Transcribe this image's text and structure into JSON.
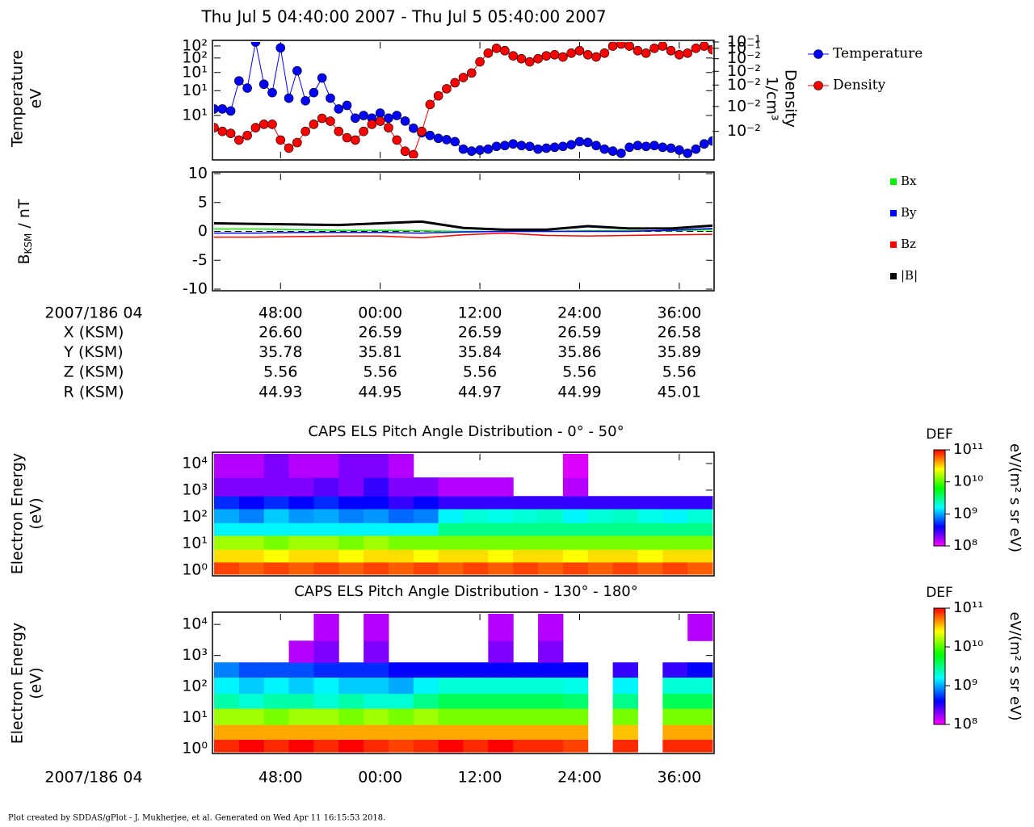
{
  "title": "Thu Jul 5 04:40:00 2007 - Thu Jul 5 05:40:00 2007",
  "footer": "Plot created by SDDAS/gPlot - J. Mukherjee, et al.  Generated on Wed Apr 11 16:15:53 2018.",
  "ephemeris": {
    "rows": [
      {
        "name": "X (KSM)",
        "values": [
          "26.60",
          "26.59",
          "26.59",
          "26.59",
          "26.58"
        ]
      },
      {
        "name": "Y (KSM)",
        "values": [
          "35.78",
          "35.81",
          "35.84",
          "35.86",
          "35.89"
        ]
      },
      {
        "name": "Z (KSM)",
        "values": [
          "5.56",
          "5.56",
          "5.56",
          "5.56",
          "5.56"
        ]
      },
      {
        "name": "R (KSM)",
        "values": [
          "44.93",
          "44.95",
          "44.97",
          "44.99",
          "45.01"
        ]
      }
    ]
  },
  "chart_data": [
    {
      "type": "line",
      "ylabel": [
        "Temperature",
        "eV"
      ],
      "y2label": [
        "Density",
        "1/cm³"
      ],
      "legend": "outside-right",
      "xlim": [
        40,
        100
      ],
      "ylim": [
        1.8,
        190
      ],
      "ylog": true,
      "y2lim": [
        0.005,
        0.1
      ],
      "y2log": true,
      "markers": true,
      "yticks": [
        {
          "value": 162,
          "label": "10²"
        },
        {
          "value": 100,
          "label": "10²"
        },
        {
          "value": 56,
          "label": "10¹"
        },
        {
          "value": 27,
          "label": "10¹"
        },
        {
          "value": 10,
          "label": "10¹"
        }
      ],
      "y2ticks": [
        {
          "value": 0.1,
          "label": "10⁻¹"
        },
        {
          "value": 0.085,
          "label": "10⁻¹"
        },
        {
          "value": 0.065,
          "label": "10⁻²"
        },
        {
          "value": 0.047,
          "label": "10⁻²"
        },
        {
          "value": 0.033,
          "label": "10⁻²"
        },
        {
          "value": 0.019,
          "label": "10⁻²"
        },
        {
          "value": 0.01,
          "label": "10⁻²"
        }
      ],
      "x": [
        40,
        41,
        42,
        43,
        44,
        45,
        46,
        47,
        48,
        49,
        50,
        51,
        52,
        53,
        54,
        55,
        56,
        57,
        58,
        59,
        60,
        61,
        62,
        63,
        64,
        65,
        66,
        67,
        68,
        69,
        70,
        71,
        72,
        73,
        74,
        75,
        76,
        77,
        78,
        79,
        80,
        81,
        82,
        83,
        84,
        85,
        86,
        87,
        88,
        89,
        90,
        91,
        92,
        93,
        94,
        95,
        96,
        97,
        98,
        99,
        100
      ],
      "series": [
        {
          "name": "Temperature",
          "color": "#0000ff",
          "axis": "y",
          "values": [
            13,
            13,
            12,
            40,
            30,
            190,
            35,
            25,
            150,
            20,
            60,
            18,
            25,
            45,
            20,
            13,
            15,
            9,
            10,
            9,
            11,
            9,
            10,
            8,
            6,
            5,
            4.5,
            4,
            3.8,
            3.5,
            2.6,
            2.4,
            2.5,
            2.6,
            2.9,
            3,
            3.2,
            3,
            2.9,
            2.6,
            2.7,
            2.8,
            2.9,
            3.1,
            3.5,
            3.4,
            3,
            2.6,
            2.4,
            2.2,
            2.8,
            3,
            2.9,
            3,
            2.8,
            2.7,
            2.5,
            2.2,
            2.6,
            3.2,
            3.6
          ]
        },
        {
          "name": "Density",
          "color": "#ff0000",
          "axis": "y2",
          "values": [
            0.011,
            0.01,
            0.0095,
            0.008,
            0.009,
            0.011,
            0.012,
            0.012,
            0.008,
            0.0065,
            0.0075,
            0.01,
            0.012,
            0.014,
            0.013,
            0.01,
            0.0085,
            0.008,
            0.01,
            0.012,
            0.013,
            0.011,
            0.008,
            0.006,
            0.0055,
            0.01,
            0.02,
            0.025,
            0.03,
            0.035,
            0.04,
            0.045,
            0.06,
            0.075,
            0.085,
            0.08,
            0.07,
            0.065,
            0.06,
            0.065,
            0.07,
            0.072,
            0.068,
            0.075,
            0.08,
            0.072,
            0.068,
            0.075,
            0.09,
            0.095,
            0.09,
            0.08,
            0.075,
            0.085,
            0.09,
            0.08,
            0.072,
            0.075,
            0.085,
            0.09,
            0.082
          ]
        }
      ]
    },
    {
      "type": "line",
      "ylabel": [
        "B",
        "KSM",
        " / nT"
      ],
      "xlabel": "2007/186 04",
      "legend": "outside-right",
      "xlim": [
        40,
        100
      ],
      "ylim": [
        -10,
        10
      ],
      "yticks": [
        10,
        5,
        0,
        -5,
        -10
      ],
      "xticks": [
        {
          "value": 48,
          "label": "48:00"
        },
        {
          "value": 60,
          "label": "00:00"
        },
        {
          "value": 72,
          "label": "12:00"
        },
        {
          "value": 84,
          "label": "24:00"
        },
        {
          "value": 96,
          "label": "36:00"
        }
      ],
      "x": [
        40,
        45,
        50,
        55,
        60,
        65,
        70,
        75,
        80,
        85,
        90,
        95,
        100
      ],
      "series": [
        {
          "name": "Bx",
          "color": "#00ee00",
          "values": [
            0.4,
            0.4,
            0.3,
            0.2,
            0.2,
            0.1,
            0,
            0,
            0,
            0.1,
            0.1,
            0.1,
            0.3
          ]
        },
        {
          "name": "By",
          "color": "#0000ff",
          "values": [
            -0.3,
            -0.3,
            -0.2,
            -0.2,
            -0.2,
            -0.3,
            -0.1,
            0,
            0,
            0,
            0,
            0.2,
            0.5
          ]
        },
        {
          "name": "Bz",
          "color": "#ff0000",
          "values": [
            -1,
            -1,
            -0.9,
            -0.8,
            -0.8,
            -1.1,
            -0.6,
            -0.3,
            -0.7,
            -0.8,
            -0.7,
            -0.6,
            -0.5
          ]
        },
        {
          "name": "|B|",
          "color": "#000000",
          "values": [
            1.4,
            1.3,
            1.2,
            1.1,
            1.4,
            1.7,
            0.6,
            0.3,
            0.3,
            0.9,
            0.5,
            0.5,
            1
          ]
        }
      ]
    },
    {
      "type": "heatmap",
      "title": "CAPS ELS Pitch Angle Distribution - 0° - 50°",
      "ylabel": [
        "Electron Energy",
        "(eV)"
      ],
      "colorbar_label": "DEF",
      "units": "eV/(m² s sr eV)",
      "colormap": "rainbow",
      "clim": [
        100000000.0,
        100000000000.0
      ],
      "clog": true,
      "cticks": [
        {
          "value": 100000000000.0,
          "label": "10¹¹"
        },
        {
          "value": 10000000000.0,
          "label": "10¹⁰"
        },
        {
          "value": 1000000000.0,
          "label": "10⁹"
        },
        {
          "value": 100000000.0,
          "label": "10⁸"
        }
      ],
      "xlim": [
        40,
        100
      ],
      "ylim": [
        0.7,
        23000
      ],
      "ylog": true,
      "yticks": [
        {
          "value": 10000,
          "label": "10⁴"
        },
        {
          "value": 1000,
          "label": "10³"
        },
        {
          "value": 100,
          "label": "10²"
        },
        {
          "value": 10,
          "label": "10¹"
        },
        {
          "value": 1,
          "label": "10⁰"
        }
      ],
      "xbins": [
        40,
        43,
        46,
        49,
        52,
        55,
        58,
        61,
        64,
        67,
        70,
        73,
        76,
        79,
        82,
        85,
        88,
        91,
        94,
        97,
        100
      ],
      "ybins": [
        0.7,
        2,
        6,
        20,
        60,
        200,
        600,
        3000,
        23000
      ],
      "z": [
        [
          70000000000.0,
          60000000000.0,
          70000000000.0,
          60000000000.0,
          70000000000.0,
          60000000000.0,
          70000000000.0,
          60000000000.0,
          70000000000.0,
          60000000000.0,
          70000000000.0,
          60000000000.0,
          70000000000.0,
          60000000000.0,
          70000000000.0,
          60000000000.0,
          70000000000.0,
          60000000000.0,
          70000000000.0,
          60000000000.0
        ],
        [
          30000000000.0,
          30000000000.0,
          25000000000.0,
          30000000000.0,
          30000000000.0,
          25000000000.0,
          30000000000.0,
          30000000000.0,
          25000000000.0,
          30000000000.0,
          30000000000.0,
          25000000000.0,
          30000000000.0,
          30000000000.0,
          25000000000.0,
          30000000000.0,
          30000000000.0,
          25000000000.0,
          30000000000.0,
          30000000000.0
        ],
        [
          15000000000.0,
          15000000000.0,
          12000000000.0,
          15000000000.0,
          15000000000.0,
          12000000000.0,
          15000000000.0,
          12000000000.0,
          12000000000.0,
          12000000000.0,
          12000000000.0,
          12000000000.0,
          12000000000.0,
          12000000000.0,
          12000000000.0,
          12000000000.0,
          12000000000.0,
          12000000000.0,
          12000000000.0,
          12000000000.0
        ],
        [
          1500000000.0,
          1500000000.0,
          1500000000.0,
          1500000000.0,
          1500000000.0,
          1500000000.0,
          1500000000.0,
          1500000000.0,
          1500000000.0,
          3000000000.0,
          3000000000.0,
          3000000000.0,
          3000000000.0,
          3000000000.0,
          3000000000.0,
          3000000000.0,
          3000000000.0,
          3000000000.0,
          3000000000.0,
          3000000000.0
        ],
        [
          1000000000.0,
          800000000.0,
          1200000000.0,
          900000000.0,
          1000000000.0,
          800000000.0,
          900000000.0,
          700000000.0,
          800000000.0,
          1500000000.0,
          2000000000.0,
          1800000000.0,
          2000000000.0,
          2200000000.0,
          1500000000.0,
          2000000000.0,
          2200000000.0,
          1800000000.0,
          1500000000.0,
          2000000000.0
        ],
        [
          500000000.0,
          400000000.0,
          500000000.0,
          400000000.0,
          500000000.0,
          400000000.0,
          400000000.0,
          300000000.0,
          400000000.0,
          300000000.0,
          300000000.0,
          300000000.0,
          300000000.0,
          300000000.0,
          300000000.0,
          300000000.0,
          300000000.0,
          300000000.0,
          300000000.0,
          300000000.0
        ],
        [
          200000000.0,
          200000000.0,
          200000000.0,
          200000000.0,
          250000000.0,
          200000000.0,
          300000000.0,
          200000000.0,
          200000000.0,
          150000000.0,
          150000000.0,
          150000000.0,
          null,
          null,
          150000000.0,
          null,
          null,
          null,
          null,
          null
        ],
        [
          150000000.0,
          150000000.0,
          200000000.0,
          150000000.0,
          150000000.0,
          200000000.0,
          200000000.0,
          150000000.0,
          null,
          null,
          null,
          null,
          null,
          null,
          120000000.0,
          null,
          null,
          null,
          null,
          null
        ]
      ]
    },
    {
      "type": "heatmap",
      "title": "CAPS ELS Pitch Angle Distribution - 130° - 180°",
      "ylabel": [
        "Electron Energy",
        "(eV)"
      ],
      "xlabel": "2007/186 04",
      "colorbar_label": "DEF",
      "units": "eV/(m² s sr eV)",
      "colormap": "rainbow",
      "clim": [
        100000000.0,
        100000000000.0
      ],
      "clog": true,
      "cticks": [
        {
          "value": 100000000000.0,
          "label": "10¹¹"
        },
        {
          "value": 10000000000.0,
          "label": "10¹⁰"
        },
        {
          "value": 1000000000.0,
          "label": "10⁹"
        },
        {
          "value": 100000000.0,
          "label": "10⁸"
        }
      ],
      "xlim": [
        40,
        100
      ],
      "ylim": [
        0.79,
        22000
      ],
      "ylog": true,
      "yticks": [
        {
          "value": 10000,
          "label": "10⁴"
        },
        {
          "value": 1000,
          "label": "10³"
        },
        {
          "value": 100,
          "label": "10²"
        },
        {
          "value": 10,
          "label": "10¹"
        },
        {
          "value": 1,
          "label": "10⁰"
        }
      ],
      "xticks": [
        {
          "value": 48,
          "label": "48:00"
        },
        {
          "value": 60,
          "label": "00:00"
        },
        {
          "value": 72,
          "label": "12:00"
        },
        {
          "value": 84,
          "label": "24:00"
        },
        {
          "value": 96,
          "label": "36:00"
        }
      ],
      "xbins": [
        40,
        43,
        46,
        49,
        52,
        55,
        58,
        61,
        64,
        67,
        70,
        73,
        76,
        79,
        82,
        85,
        88,
        91,
        94,
        97,
        100
      ],
      "ybins": [
        0.79,
        2,
        6,
        20,
        60,
        200,
        600,
        3000,
        22000
      ],
      "z": [
        [
          80000000000.0,
          100000000000.0,
          80000000000.0,
          100000000000.0,
          80000000000.0,
          100000000000.0,
          80000000000.0,
          70000000000.0,
          80000000000.0,
          100000000000.0,
          80000000000.0,
          100000000000.0,
          80000000000.0,
          80000000000.0,
          70000000000.0,
          null,
          80000000000.0,
          null,
          80000000000.0,
          80000000000.0
        ],
        [
          40000000000.0,
          40000000000.0,
          40000000000.0,
          40000000000.0,
          40000000000.0,
          40000000000.0,
          40000000000.0,
          40000000000.0,
          40000000000.0,
          40000000000.0,
          40000000000.0,
          40000000000.0,
          40000000000.0,
          40000000000.0,
          40000000000.0,
          null,
          35000000000.0,
          null,
          40000000000.0,
          40000000000.0
        ],
        [
          15000000000.0,
          15000000000.0,
          12000000000.0,
          15000000000.0,
          15000000000.0,
          12000000000.0,
          15000000000.0,
          12000000000.0,
          15000000000.0,
          12000000000.0,
          12000000000.0,
          12000000000.0,
          12000000000.0,
          12000000000.0,
          12000000000.0,
          null,
          12000000000.0,
          null,
          12000000000.0,
          12000000000.0
        ],
        [
          2500000000.0,
          2000000000.0,
          2500000000.0,
          2500000000.0,
          2000000000.0,
          2500000000.0,
          2000000000.0,
          2000000000.0,
          3000000000.0,
          4000000000.0,
          4000000000.0,
          4000000000.0,
          4000000000.0,
          4000000000.0,
          3500000000.0,
          null,
          3000000000.0,
          null,
          4000000000.0,
          4000000000.0
        ],
        [
          1500000000.0,
          1200000000.0,
          1500000000.0,
          1200000000.0,
          1500000000.0,
          1200000000.0,
          1200000000.0,
          1000000000.0,
          1500000000.0,
          2000000000.0,
          2000000000.0,
          2000000000.0,
          2000000000.0,
          2000000000.0,
          1800000000.0,
          null,
          1500000000.0,
          null,
          2000000000.0,
          2000000000.0
        ],
        [
          800000000.0,
          600000000.0,
          600000000.0,
          600000000.0,
          500000000.0,
          500000000.0,
          500000000.0,
          400000000.0,
          400000000.0,
          400000000.0,
          400000000.0,
          400000000.0,
          400000000.0,
          400000000.0,
          400000000.0,
          null,
          300000000.0,
          null,
          300000000.0,
          400000000.0
        ],
        [
          null,
          null,
          null,
          150000000.0,
          200000000.0,
          null,
          200000000.0,
          null,
          null,
          null,
          null,
          200000000.0,
          null,
          200000000.0,
          null,
          null,
          null,
          null,
          null,
          null
        ],
        [
          null,
          null,
          null,
          null,
          150000000.0,
          null,
          150000000.0,
          null,
          null,
          null,
          null,
          150000000.0,
          null,
          150000000.0,
          null,
          null,
          null,
          null,
          null,
          150000000.0
        ]
      ]
    }
  ]
}
